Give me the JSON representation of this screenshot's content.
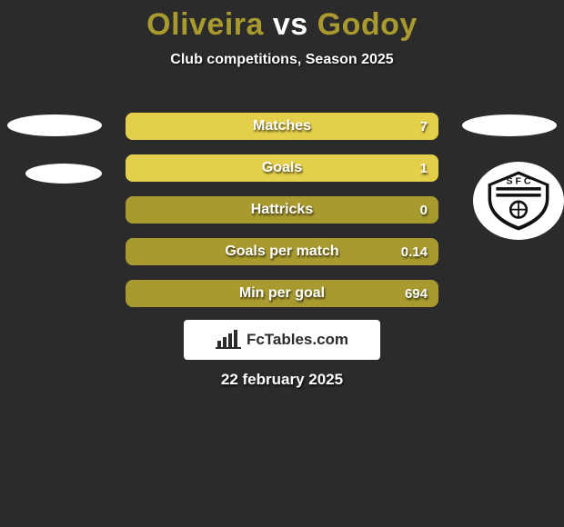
{
  "title": {
    "player1": "Oliveira",
    "vs": "vs",
    "player2": "Godoy",
    "color1": "#a89a2f",
    "color_vs": "#ffffff",
    "color2": "#a89a2f",
    "fontsize": 34
  },
  "subtitle": "Club competitions, Season 2025",
  "background_color": "#2b2b2b",
  "bars": {
    "fill_color_right": "#e4cf4a",
    "base_color": "#a89a2f",
    "border_radius": 8,
    "height": 30,
    "gap": 16,
    "label_fontsize": 16,
    "value_fontsize": 15,
    "items": [
      {
        "label": "Matches",
        "left": "",
        "right": "7",
        "right_fill_ratio": 1.0
      },
      {
        "label": "Goals",
        "left": "",
        "right": "1",
        "right_fill_ratio": 1.0
      },
      {
        "label": "Hattricks",
        "left": "",
        "right": "0",
        "right_fill_ratio": 0.0
      },
      {
        "label": "Goals per match",
        "left": "",
        "right": "0.14",
        "right_fill_ratio": 0.0
      },
      {
        "label": "Min per goal",
        "left": "",
        "right": "694",
        "right_fill_ratio": 0.0
      }
    ]
  },
  "watermark": "FcTables.com",
  "watermark_bg": "#ffffff",
  "date": "22 february 2025",
  "badges": {
    "left_placeholder_color": "#ffffff",
    "right_placeholder_color": "#ffffff",
    "santos_colors": {
      "bg": "#ffffff",
      "stroke": "#111111",
      "fill": "#111111"
    }
  }
}
